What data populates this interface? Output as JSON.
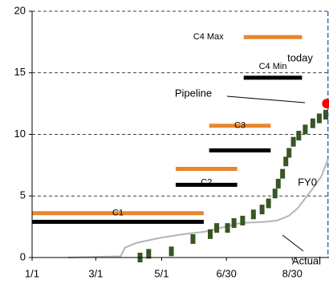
{
  "chart_data": {
    "type": "range-timeline",
    "xlim": [
      1,
      276
    ],
    "xticks": [
      {
        "value": 1,
        "label": "1/1"
      },
      {
        "value": 60,
        "label": "3/1"
      },
      {
        "value": 121,
        "label": "5/1"
      },
      {
        "value": 181,
        "label": "6/30"
      },
      {
        "value": 242,
        "label": "8/30"
      }
    ],
    "ylim": [
      0,
      20
    ],
    "yticks": [
      0,
      5,
      10,
      15,
      20
    ],
    "grid": true,
    "segments": [
      {
        "name": "C1",
        "y": 3.6,
        "start": 1,
        "end": 160,
        "color": "#e8862a"
      },
      {
        "y": 2.9,
        "start": 1,
        "end": 160,
        "color": "#000000"
      },
      {
        "name": "C2",
        "y": 7.2,
        "start": 134,
        "end": 191,
        "color": "#e8862a"
      },
      {
        "y": 5.9,
        "start": 134,
        "end": 191,
        "color": "#000000"
      },
      {
        "name": "C3",
        "y": 10.7,
        "start": 165,
        "end": 222,
        "color": "#e8862a"
      },
      {
        "y": 8.7,
        "start": 165,
        "end": 222,
        "color": "#000000"
      },
      {
        "name": "C4  Max",
        "y": 17.9,
        "start": 197,
        "end": 251,
        "color": "#e8862a"
      },
      {
        "name": "C4 Min",
        "y": 14.6,
        "start": 197,
        "end": 251,
        "color": "#000000"
      }
    ],
    "pipeline": {
      "color": "#375623",
      "x": [
        101,
        109,
        130,
        150,
        166,
        172,
        182,
        188,
        196,
        206,
        214,
        220,
        226,
        229,
        233,
        236,
        239,
        243,
        248,
        254,
        261,
        267,
        273
      ],
      "values": [
        0.0,
        0.3,
        0.5,
        1.5,
        1.9,
        2.4,
        2.4,
        2.8,
        3.0,
        3.5,
        3.9,
        4.4,
        5.2,
        6.0,
        6.8,
        7.8,
        8.5,
        9.4,
        9.9,
        10.4,
        10.9,
        11.3,
        11.6
      ]
    },
    "actual": {
      "color": "#b4b4b4",
      "x": [
        34,
        83,
        87,
        98,
        120,
        142,
        161,
        180,
        194,
        217,
        228,
        239,
        247,
        254,
        261,
        269,
        275
      ],
      "values": [
        0,
        0.1,
        0.8,
        1.2,
        1.6,
        1.9,
        2.1,
        2.5,
        2.8,
        2.9,
        3.0,
        3.4,
        4.0,
        4.8,
        5.6,
        6.6,
        8.0
      ]
    },
    "forecast_point": {
      "x": 274,
      "y": 12.5,
      "color": "#ff0000"
    },
    "today_x": 275,
    "annotations": [
      "today",
      "Pipeline",
      "FY0",
      "Actual"
    ]
  }
}
